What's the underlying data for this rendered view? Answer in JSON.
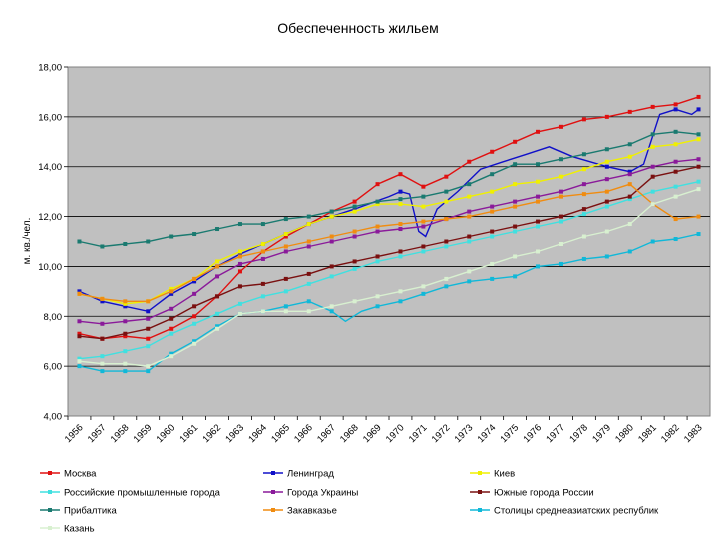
{
  "chart_data": {
    "type": "line",
    "title": "Обеспеченность жильем",
    "ylabel": "м. кв./чел.",
    "xlabel": "",
    "ylim": [
      4,
      18
    ],
    "yticks": [
      "4,00",
      "6,00",
      "8,00",
      "10,00",
      "12,00",
      "14,00",
      "16,00",
      "18,00"
    ],
    "categories": [
      "1956",
      "1957",
      "1958",
      "1959",
      "1960",
      "1961",
      "1962",
      "1963",
      "1964",
      "1965",
      "1966",
      "1967",
      "1968",
      "1969",
      "1970",
      "1971",
      "1972",
      "1973",
      "1974",
      "1975",
      "1976",
      "1977",
      "1978",
      "1979",
      "1980",
      "1981",
      "1982",
      "1983"
    ],
    "grid": "horizontal",
    "background": "#c0c0c0",
    "legend_position": "bottom",
    "series": [
      {
        "name": "Москва",
        "color": "#e01010",
        "values": [
          7.3,
          7.1,
          7.2,
          7.1,
          7.5,
          8.0,
          8.8,
          9.8,
          10.6,
          11.2,
          11.7,
          12.2,
          12.6,
          13.3,
          13.7,
          13.2,
          13.6,
          14.2,
          14.6,
          15.0,
          15.4,
          15.6,
          15.9,
          16.0,
          16.2,
          16.4,
          16.5,
          16.8
        ],
        "x": [
          0,
          1,
          2,
          3,
          4,
          5,
          6,
          7,
          8,
          9,
          10,
          11,
          12,
          13,
          14,
          15,
          16,
          17,
          18,
          19,
          20,
          21,
          22,
          23,
          24,
          25,
          26,
          27
        ]
      },
      {
        "name": "Ленинград",
        "color": "#1010c8",
        "values": [
          9.0,
          8.6,
          8.4,
          8.2,
          8.9,
          9.4,
          10.0,
          10.5,
          10.9,
          11.3,
          11.7,
          12.0,
          12.3,
          12.8,
          13.0,
          12.9,
          11.4,
          11.2,
          12.3,
          13.0,
          13.9,
          14.2,
          14.5,
          14.8,
          14.4,
          14.0,
          13.8,
          14.1,
          16.1,
          16.3,
          16.1,
          16.3
        ],
        "x": [
          0,
          1,
          2,
          3,
          4,
          5,
          6,
          7,
          8,
          9,
          10,
          11,
          12,
          13.5,
          14,
          14.4,
          14.8,
          15.1,
          15.6,
          16.5,
          17.5,
          18.5,
          19.5,
          20.5,
          21.5,
          23,
          24,
          24.6,
          25.3,
          26,
          26.7,
          27
        ]
      },
      {
        "name": "Киев",
        "color": "#f0f000",
        "values": [
          8.9,
          8.7,
          8.5,
          8.6,
          9.1,
          9.5,
          10.2,
          10.6,
          10.9,
          11.3,
          11.7,
          12.0,
          12.2,
          12.5,
          12.5,
          12.4,
          12.6,
          12.8,
          13.0,
          13.3,
          13.4,
          13.6,
          13.9,
          14.2,
          14.4,
          14.8,
          14.9,
          15.1
        ],
        "x": [
          0,
          1,
          2,
          3,
          4,
          5,
          6,
          7,
          8,
          9,
          10,
          11,
          12,
          13,
          14,
          15,
          16,
          17,
          18,
          19,
          20,
          21,
          22,
          23,
          24,
          25,
          26,
          27
        ]
      },
      {
        "name": "Российские промышленные города",
        "color": "#40e0e0",
        "values": [
          6.3,
          6.4,
          6.6,
          6.8,
          7.3,
          7.7,
          8.1,
          8.5,
          8.8,
          9.0,
          9.3,
          9.6,
          9.9,
          10.2,
          10.4,
          10.6,
          10.8,
          11.0,
          11.2,
          11.4,
          11.6,
          11.8,
          12.1,
          12.4,
          12.7,
          13.0,
          13.2,
          13.4
        ],
        "x": [
          0,
          1,
          2,
          3,
          4,
          5,
          6,
          7,
          8,
          9,
          10,
          11,
          12,
          13,
          14,
          15,
          16,
          17,
          18,
          19,
          20,
          21,
          22,
          23,
          24,
          25,
          26,
          27
        ]
      },
      {
        "name": "Города Украины",
        "color": "#8a1a9a",
        "values": [
          7.8,
          7.7,
          7.8,
          7.9,
          8.3,
          8.9,
          9.6,
          10.1,
          10.3,
          10.6,
          10.8,
          11.0,
          11.2,
          11.4,
          11.5,
          11.6,
          11.9,
          12.2,
          12.4,
          12.6,
          12.8,
          13.0,
          13.3,
          13.5,
          13.7,
          14.0,
          14.2,
          14.3
        ],
        "x": [
          0,
          1,
          2,
          3,
          4,
          5,
          6,
          7,
          8,
          9,
          10,
          11,
          12,
          13,
          14,
          15,
          16,
          17,
          18,
          19,
          20,
          21,
          22,
          23,
          24,
          25,
          26,
          27
        ]
      },
      {
        "name": "Южные города России",
        "color": "#7a1010",
        "values": [
          7.2,
          7.1,
          7.3,
          7.5,
          7.9,
          8.4,
          8.8,
          9.2,
          9.3,
          9.5,
          9.7,
          10.0,
          10.2,
          10.4,
          10.6,
          10.8,
          11.0,
          11.2,
          11.4,
          11.6,
          11.8,
          12.0,
          12.3,
          12.6,
          12.8,
          13.6,
          13.8,
          14.0
        ],
        "x": [
          0,
          1,
          2,
          3,
          4,
          5,
          6,
          7,
          8,
          9,
          10,
          11,
          12,
          13,
          14,
          15,
          16,
          17,
          18,
          19,
          20,
          21,
          22,
          23,
          24,
          25,
          26,
          27
        ]
      },
      {
        "name": "Прибалтика",
        "color": "#1a7a70",
        "values": [
          11.0,
          10.8,
          10.9,
          11.0,
          11.2,
          11.3,
          11.5,
          11.7,
          11.7,
          11.9,
          12.0,
          12.2,
          12.4,
          12.6,
          12.7,
          12.8,
          13.0,
          13.3,
          13.7,
          14.1,
          14.1,
          14.3,
          14.5,
          14.7,
          14.9,
          15.3,
          15.4,
          15.3
        ],
        "x": [
          0,
          1,
          2,
          3,
          4,
          5,
          6,
          7,
          8,
          9,
          10,
          11,
          12,
          13,
          14,
          15,
          16,
          17,
          18,
          19,
          20,
          21,
          22,
          23,
          24,
          25,
          26,
          27
        ]
      },
      {
        "name": "Закавказье",
        "color": "#f08c10",
        "values": [
          8.9,
          8.7,
          8.6,
          8.6,
          9.0,
          9.5,
          10.0,
          10.4,
          10.6,
          10.8,
          11.0,
          11.2,
          11.4,
          11.6,
          11.7,
          11.8,
          11.9,
          12.0,
          12.2,
          12.4,
          12.6,
          12.8,
          12.9,
          13.0,
          13.3,
          12.5,
          11.9,
          12.0
        ],
        "x": [
          0,
          1,
          2,
          3,
          4,
          5,
          6,
          7,
          8,
          9,
          10,
          11,
          12,
          13,
          14,
          15,
          16,
          17,
          18,
          19,
          20,
          21,
          22,
          23,
          24,
          25,
          26,
          27
        ]
      },
      {
        "name": "Столицы среднеазиатских республик",
        "color": "#10b8d8",
        "values": [
          6.0,
          5.8,
          5.8,
          5.8,
          6.5,
          7.0,
          7.6,
          8.1,
          8.2,
          8.4,
          8.6,
          8.2,
          7.8,
          8.2,
          8.4,
          8.6,
          8.9,
          9.2,
          9.4,
          9.5,
          9.6,
          10.0,
          10.1,
          10.3,
          10.4,
          10.6,
          11.0,
          11.1,
          11.3
        ],
        "x": [
          0,
          1,
          2,
          3,
          4,
          5,
          6,
          7,
          8,
          9,
          10,
          11,
          11.6,
          12.3,
          13,
          14,
          15,
          16,
          17,
          18,
          19,
          20,
          21,
          22,
          23,
          24,
          25,
          26,
          27
        ]
      },
      {
        "name": "Казань",
        "color": "#d8f0d0",
        "values": [
          6.2,
          6.1,
          6.1,
          6.0,
          6.4,
          6.9,
          7.5,
          8.1,
          8.2,
          8.2,
          8.2,
          8.4,
          8.6,
          8.8,
          9.0,
          9.2,
          9.5,
          9.8,
          10.1,
          10.4,
          10.6,
          10.9,
          11.2,
          11.4,
          11.7,
          12.5,
          12.8,
          13.1
        ],
        "x": [
          0,
          1,
          2,
          3,
          4,
          5,
          6,
          7,
          8,
          9,
          10,
          11,
          12,
          13,
          14,
          15,
          16,
          17,
          18,
          19,
          20,
          21,
          22,
          23,
          24,
          25,
          26,
          27
        ]
      }
    ]
  }
}
